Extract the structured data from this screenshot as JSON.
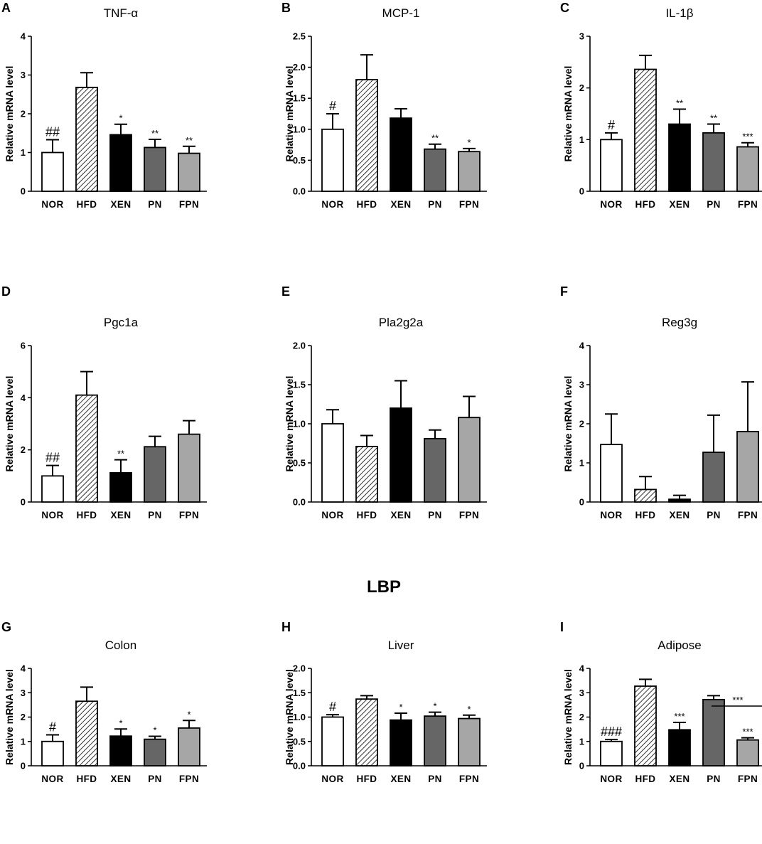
{
  "section_title": "LBP",
  "y_axis_label": "Relative mRNA level",
  "bar_colors": {
    "NOR": "#ffffff",
    "HFD": "hatched",
    "XEN": "#000000",
    "PN": "#666666",
    "FPN": "#a6a6a6"
  },
  "chart_data": [
    {
      "label": "A",
      "title": "TNF-α",
      "type": "bar",
      "categories": [
        "NOR",
        "HFD",
        "XEN",
        "PN",
        "FPN"
      ],
      "values": [
        1.0,
        2.68,
        1.46,
        1.13,
        0.98
      ],
      "errors": [
        0.33,
        0.38,
        0.27,
        0.21,
        0.18
      ],
      "annotations": [
        "##",
        "",
        "*",
        "**",
        "**"
      ],
      "ylim": [
        0,
        4
      ],
      "yticks": [
        "0",
        "1",
        "2",
        "3",
        "4"
      ],
      "ylabel": "Relative mRNA level"
    },
    {
      "label": "B",
      "title": "MCP-1",
      "type": "bar",
      "categories": [
        "NOR",
        "HFD",
        "XEN",
        "PN",
        "FPN"
      ],
      "values": [
        1.0,
        1.8,
        1.18,
        0.68,
        0.64
      ],
      "errors": [
        0.25,
        0.4,
        0.15,
        0.08,
        0.05
      ],
      "annotations": [
        "#",
        "",
        "",
        "**",
        "*"
      ],
      "ylim": [
        0,
        2.5
      ],
      "yticks": [
        "0.0",
        "0.5",
        "1.0",
        "1.5",
        "2.0",
        "2.5"
      ],
      "ylabel": "Relative mRNA level"
    },
    {
      "label": "C",
      "title": "IL-1β",
      "type": "bar",
      "categories": [
        "NOR",
        "HFD",
        "XEN",
        "PN",
        "FPN"
      ],
      "values": [
        1.0,
        2.36,
        1.3,
        1.13,
        0.86
      ],
      "errors": [
        0.13,
        0.27,
        0.29,
        0.17,
        0.08
      ],
      "annotations": [
        "#",
        "",
        "**",
        "**",
        "***"
      ],
      "ylim": [
        0,
        3
      ],
      "yticks": [
        "0",
        "1",
        "2",
        "3"
      ],
      "ylabel": "Relative mRNA level"
    },
    {
      "label": "D",
      "title": "Pgc1a",
      "type": "bar",
      "categories": [
        "NOR",
        "HFD",
        "XEN",
        "PN",
        "FPN"
      ],
      "values": [
        1.0,
        4.1,
        1.12,
        2.12,
        2.6
      ],
      "errors": [
        0.4,
        0.9,
        0.5,
        0.4,
        0.52
      ],
      "annotations": [
        "##",
        "",
        "**",
        "",
        ""
      ],
      "ylim": [
        0,
        6
      ],
      "yticks": [
        "0",
        "2",
        "4",
        "6"
      ],
      "ylabel": "Relative mRNA level"
    },
    {
      "label": "E",
      "title": "Pla2g2a",
      "type": "bar",
      "categories": [
        "NOR",
        "HFD",
        "XEN",
        "PN",
        "FPN"
      ],
      "values": [
        1.0,
        0.71,
        1.2,
        0.81,
        1.08
      ],
      "errors": [
        0.18,
        0.14,
        0.35,
        0.11,
        0.27
      ],
      "annotations": [
        "",
        "",
        "",
        "",
        ""
      ],
      "ylim": [
        0,
        2
      ],
      "yticks": [
        "0.0",
        "0.5",
        "1.0",
        "1.5",
        "2.0"
      ],
      "ylabel": "Relative mRNA level"
    },
    {
      "label": "F",
      "title": "Reg3g",
      "type": "bar",
      "categories": [
        "NOR",
        "HFD",
        "XEN",
        "PN",
        "FPN"
      ],
      "values": [
        1.47,
        0.32,
        0.07,
        1.27,
        1.8
      ],
      "errors": [
        0.78,
        0.33,
        0.1,
        0.95,
        1.27
      ],
      "annotations": [
        "",
        "",
        "",
        "",
        ""
      ],
      "ylim": [
        0,
        4
      ],
      "yticks": [
        "0",
        "1",
        "2",
        "3",
        "4"
      ],
      "ylabel": "Relative mRNA level"
    },
    {
      "label": "G",
      "title": "Colon",
      "type": "bar",
      "categories": [
        "NOR",
        "HFD",
        "XEN",
        "PN",
        "FPN"
      ],
      "values": [
        1.0,
        2.65,
        1.22,
        1.09,
        1.55
      ],
      "errors": [
        0.27,
        0.58,
        0.29,
        0.12,
        0.31
      ],
      "annotations": [
        "#",
        "",
        "*",
        "*",
        "*"
      ],
      "ylim": [
        0,
        4
      ],
      "yticks": [
        "0",
        "1",
        "2",
        "3",
        "4"
      ],
      "ylabel": "Relative mRNA level"
    },
    {
      "label": "H",
      "title": "Liver",
      "type": "bar",
      "categories": [
        "NOR",
        "HFD",
        "XEN",
        "PN",
        "FPN"
      ],
      "values": [
        1.0,
        1.37,
        0.94,
        1.02,
        0.97
      ],
      "errors": [
        0.05,
        0.07,
        0.14,
        0.08,
        0.07
      ],
      "annotations": [
        "#",
        "",
        "*",
        "*",
        "*"
      ],
      "ylim": [
        0,
        2
      ],
      "yticks": [
        "0.0",
        "0.5",
        "1.0",
        "1.5",
        "2.0"
      ],
      "ylabel": "Relative mRNA level"
    },
    {
      "label": "I",
      "title": "Adipose",
      "type": "bar",
      "categories": [
        "NOR",
        "HFD",
        "XEN",
        "PN",
        "FPN"
      ],
      "values": [
        1.0,
        3.27,
        1.48,
        2.72,
        1.06
      ],
      "errors": [
        0.08,
        0.28,
        0.3,
        0.16,
        0.09
      ],
      "annotations": [
        "###",
        "",
        "***",
        "",
        "***"
      ],
      "ylim": [
        0,
        4
      ],
      "yticks": [
        "0",
        "1",
        "2",
        "3",
        "4"
      ],
      "ylabel": "Relative mRNA level",
      "bracket": {
        "from": "PN",
        "to": "FPN",
        "label": "***"
      }
    }
  ]
}
